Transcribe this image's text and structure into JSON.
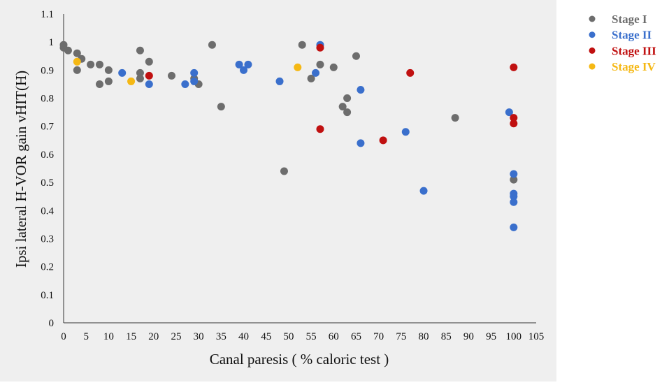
{
  "chart_data": {
    "type": "scatter",
    "title": "",
    "xlabel": "Canal paresis ( % caloric test )",
    "ylabel": "Ipsi lateral H-VOR gain vHIT(H)",
    "xlim": [
      0,
      105
    ],
    "ylim": [
      0,
      1.1
    ],
    "x_ticks": [
      "0",
      "5",
      "10",
      "15",
      "20",
      "25",
      "30",
      "35",
      "40",
      "45",
      "50",
      "55",
      "60",
      "65",
      "70",
      "75",
      "80",
      "85",
      "90",
      "95",
      "100",
      "105"
    ],
    "y_ticks": [
      "0",
      "0.1",
      "0.2",
      "0.3",
      "0.4",
      "0.5",
      "0.6",
      "0.7",
      "0.8",
      "0.9",
      "1",
      "1.1"
    ],
    "grid": false,
    "legend_position": "right",
    "series": [
      {
        "name": "Stage I",
        "color": "#6d6d6d",
        "points": [
          [
            0,
            0.99
          ],
          [
            0,
            0.98
          ],
          [
            1,
            0.97
          ],
          [
            3,
            0.96
          ],
          [
            3,
            0.9
          ],
          [
            4,
            0.94
          ],
          [
            6,
            0.92
          ],
          [
            8,
            0.92
          ],
          [
            8,
            0.85
          ],
          [
            10,
            0.9
          ],
          [
            10,
            0.86
          ],
          [
            17,
            0.97
          ],
          [
            17,
            0.89
          ],
          [
            17,
            0.87
          ],
          [
            19,
            0.93
          ],
          [
            24,
            0.88
          ],
          [
            29,
            0.87
          ],
          [
            30,
            0.85
          ],
          [
            33,
            0.99
          ],
          [
            35,
            0.77
          ],
          [
            49,
            0.54
          ],
          [
            53,
            0.99
          ],
          [
            55,
            0.87
          ],
          [
            57,
            0.92
          ],
          [
            60,
            0.91
          ],
          [
            62,
            0.77
          ],
          [
            63,
            0.8
          ],
          [
            63,
            0.75
          ],
          [
            65,
            0.95
          ],
          [
            87,
            0.73
          ],
          [
            100,
            0.51
          ]
        ]
      },
      {
        "name": "Stage II",
        "color": "#3a6fcc",
        "points": [
          [
            13,
            0.89
          ],
          [
            19,
            0.85
          ],
          [
            27,
            0.85
          ],
          [
            29,
            0.89
          ],
          [
            29,
            0.86
          ],
          [
            39,
            0.92
          ],
          [
            40,
            0.9
          ],
          [
            41,
            0.92
          ],
          [
            48,
            0.86
          ],
          [
            56,
            0.89
          ],
          [
            57,
            0.99
          ],
          [
            66,
            0.83
          ],
          [
            66,
            0.64
          ],
          [
            76,
            0.68
          ],
          [
            80,
            0.47
          ],
          [
            99,
            0.75
          ],
          [
            100,
            0.53
          ],
          [
            100,
            0.46
          ],
          [
            100,
            0.45
          ],
          [
            100,
            0.43
          ],
          [
            100,
            0.34
          ]
        ]
      },
      {
        "name": "Stage III",
        "color": "#c01010",
        "points": [
          [
            19,
            0.88
          ],
          [
            57,
            0.98
          ],
          [
            57,
            0.69
          ],
          [
            71,
            0.65
          ],
          [
            77,
            0.89
          ],
          [
            100,
            0.91
          ],
          [
            100,
            0.73
          ],
          [
            100,
            0.71
          ]
        ]
      },
      {
        "name": "Stage IV",
        "color": "#f5b814",
        "points": [
          [
            3,
            0.93
          ],
          [
            15,
            0.86
          ],
          [
            52,
            0.91
          ]
        ]
      }
    ]
  }
}
